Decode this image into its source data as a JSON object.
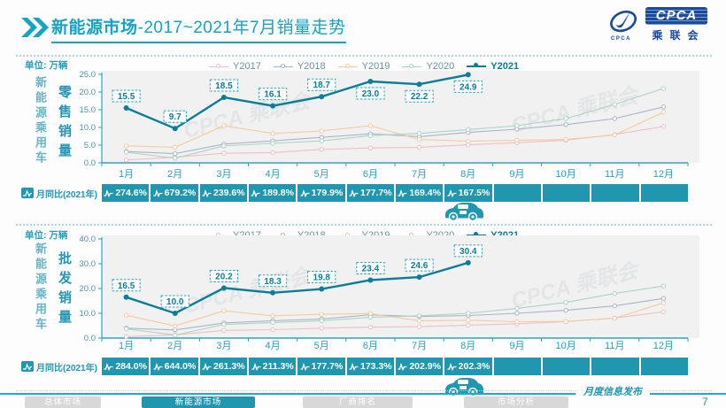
{
  "header": {
    "title_emphasis": "新能源市场",
    "title_rest": "-2017~2021年7月销量走势"
  },
  "logo": {
    "acronym": "CPCA",
    "cn_name": "乘联会",
    "swoosh_text": "CPCA"
  },
  "colors": {
    "accent": "#17A3C2",
    "axis": "#2AA6C2",
    "bar": "#2196AF",
    "dark_blue": "#1A4B9B",
    "y2021": "#0C7D99"
  },
  "chart_data": [
    {
      "type": "line",
      "title": "新能源乘用车零售销量",
      "unit_label": "单位: 万辆",
      "group_label": "新能源乘用车",
      "measure_label": "零售销量",
      "categories": [
        "1月",
        "2月",
        "3月",
        "4月",
        "5月",
        "6月",
        "7月",
        "8月",
        "9月",
        "10月",
        "11月",
        "12月"
      ],
      "ylim": [
        0,
        25
      ],
      "ytick_labels": [
        "0.0",
        "5.0",
        "10.0",
        "15.0",
        "20.0",
        "25.0"
      ],
      "grid": false,
      "legend_position": "top",
      "series": [
        {
          "name": "Y2017",
          "color": "#F3BDC6",
          "emphasis": false,
          "values": [
            0.8,
            1.6,
            2.7,
            2.9,
            3.8,
            4.2,
            4.4,
            5.1,
            5.7,
            6.4,
            8.0,
            10.3
          ]
        },
        {
          "name": "Y2018",
          "color": "#A9B4C8",
          "emphasis": false,
          "values": [
            3.2,
            2.6,
            5.3,
            6.2,
            7.2,
            8.2,
            7.4,
            8.6,
            9.5,
            10.8,
            12.5,
            15.8
          ]
        },
        {
          "name": "Y2019",
          "color": "#F6CA9E",
          "emphasis": false,
          "values": [
            4.8,
            4.4,
            10.5,
            8.3,
            9.0,
            10.5,
            6.6,
            6.1,
            6.4,
            6.6,
            7.9,
            14.3
          ]
        },
        {
          "name": "Y2020",
          "color": "#ABD3C5",
          "emphasis": false,
          "values": [
            3.0,
            1.3,
            4.8,
            5.5,
            6.2,
            7.7,
            8.3,
            9.4,
            10.5,
            12.5,
            16.5,
            21.0
          ]
        },
        {
          "name": "Y2021",
          "color": "#0C7D99",
          "emphasis": true,
          "values": [
            15.5,
            9.7,
            18.5,
            16.1,
            18.7,
            23.0,
            22.2,
            24.9
          ],
          "point_labels": [
            "15.5",
            "9.7",
            "18.5",
            "16.1",
            "18.7",
            "23.0",
            "22.2",
            "24.9"
          ],
          "labels_below_from": 5
        }
      ],
      "yoy_row": {
        "label": "月同比(2021年)",
        "values": [
          "274.6%",
          "679.2%",
          "239.6%",
          "189.8%",
          "179.9%",
          "177.7%",
          "169.4%",
          "167.5%",
          "",
          "",
          "",
          ""
        ]
      }
    },
    {
      "type": "line",
      "title": "新能源乘用车批发销量",
      "unit_label": "单位: 万辆",
      "group_label": "新能源乘用车",
      "measure_label": "批发销量",
      "categories": [
        "1月",
        "2月",
        "3月",
        "4月",
        "5月",
        "6月",
        "7月",
        "8月",
        "9月",
        "10月",
        "11月",
        "12月"
      ],
      "ylim": [
        0,
        40
      ],
      "ytick_labels": [
        "0.0",
        "10.0",
        "20.0",
        "30.0",
        "40.0"
      ],
      "grid": false,
      "legend_position": "top",
      "series": [
        {
          "name": "Y2017",
          "color": "#F3BDC6",
          "emphasis": false,
          "values": [
            0.6,
            1.3,
            3.1,
            3.4,
            4.0,
            4.4,
            4.6,
            5.2,
            5.8,
            6.6,
            8.1,
            10.6
          ]
        },
        {
          "name": "Y2018",
          "color": "#A9B4C8",
          "emphasis": false,
          "values": [
            4.0,
            3.3,
            6.1,
            7.0,
            7.7,
            9.4,
            8.7,
            9.1,
            10.0,
            11.2,
            13.0,
            16.0
          ]
        },
        {
          "name": "Y2019",
          "color": "#F6CA9E",
          "emphasis": false,
          "values": [
            9.2,
            4.9,
            11.0,
            9.0,
            9.6,
            9.9,
            7.0,
            7.2,
            6.6,
            6.7,
            8.0,
            14.2
          ]
        },
        {
          "name": "Y2020",
          "color": "#ABD3C5",
          "emphasis": false,
          "values": [
            3.7,
            1.2,
            5.5,
            6.3,
            7.0,
            8.4,
            9.0,
            10.0,
            12.0,
            14.4,
            18.0,
            21.0
          ]
        },
        {
          "name": "Y2021",
          "color": "#0C7D99",
          "emphasis": true,
          "values": [
            16.5,
            10.0,
            20.2,
            18.3,
            19.8,
            23.4,
            24.6,
            30.4
          ],
          "point_labels": [
            "16.5",
            "10.0",
            "20.2",
            "18.3",
            "19.8",
            "23.4",
            "24.6",
            "30.4"
          ],
          "labels_below_from": null
        }
      ],
      "yoy_row": {
        "label": "月同比(2021年)",
        "values": [
          "284.0%",
          "644.0%",
          "261.3%",
          "211.3%",
          "177.7%",
          "173.3%",
          "202.9%",
          "202.3%",
          "",
          "",
          "",
          ""
        ]
      }
    }
  ],
  "footer": {
    "tabs": [
      {
        "label": "总体市场",
        "active": false
      },
      {
        "label": "新能源市场",
        "active": true
      },
      {
        "label": "厂商排名",
        "active": false
      },
      {
        "label": "市场分析",
        "active": false
      }
    ],
    "publication_label": "月度信息发布",
    "page_number": "7"
  }
}
